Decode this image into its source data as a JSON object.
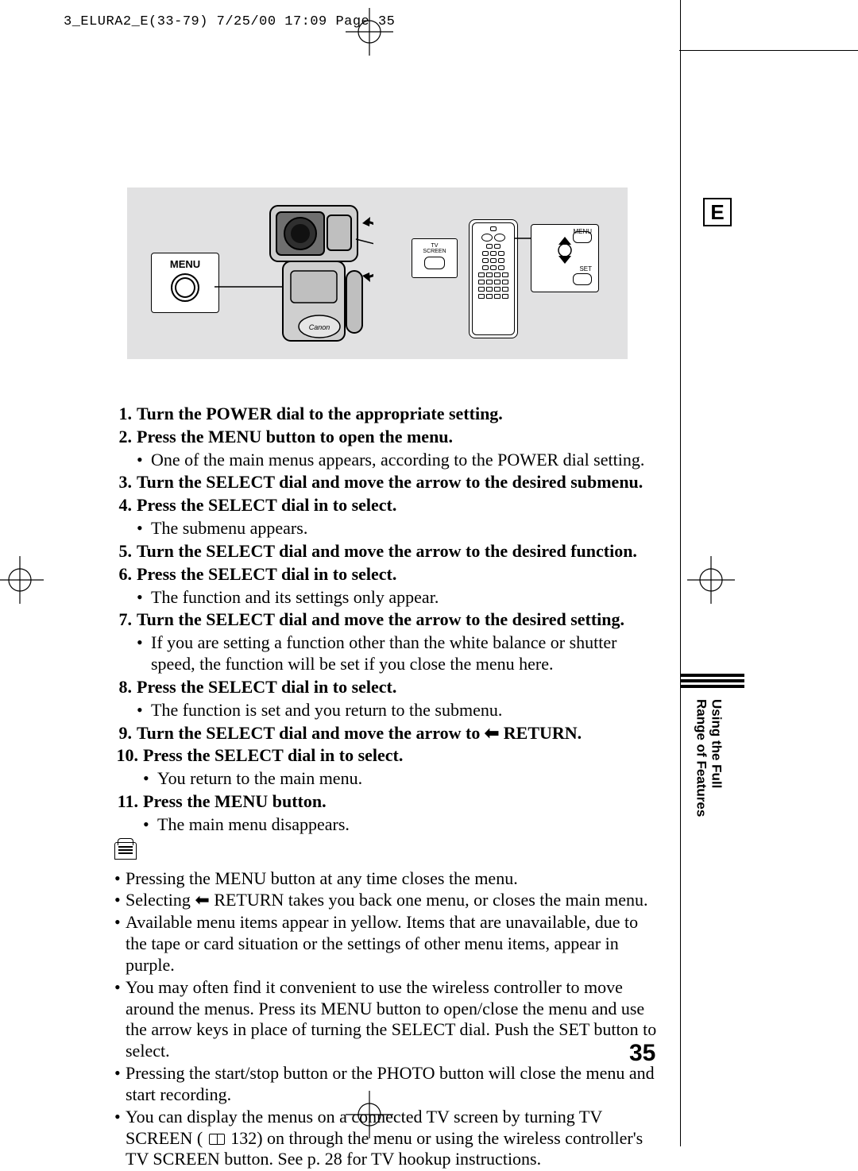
{
  "header": "3_ELURA2_E(33-79)  7/25/00 17:09  Page 35",
  "langBox": "E",
  "sectionTab": "Using the Full\nRange of Features",
  "pageNumber": "35",
  "figure": {
    "menuLabel": "MENU",
    "tvLabel": "TV\nSCREEN",
    "detail": {
      "menu": "MENU",
      "set": "SET"
    }
  },
  "steps": [
    {
      "n": "1.",
      "text": "Turn the POWER dial to the appropriate setting.",
      "subs": []
    },
    {
      "n": "2.",
      "text": "Press the MENU button to open the menu.",
      "subs": [
        "One of the main menus appears, according to the POWER dial setting."
      ]
    },
    {
      "n": "3.",
      "text": "Turn the SELECT dial and move the arrow to the desired submenu.",
      "subs": []
    },
    {
      "n": "4.",
      "text": "Press the SELECT dial in to select.",
      "subs": [
        "The submenu appears."
      ]
    },
    {
      "n": "5.",
      "text": "Turn the SELECT dial and move the arrow to the desired function.",
      "subs": []
    },
    {
      "n": "6.",
      "text": "Press the SELECT dial in to select.",
      "subs": [
        "The function and its settings only appear."
      ]
    },
    {
      "n": "7.",
      "text": "Turn the SELECT dial and move the arrow to the desired setting.",
      "subs": [
        "If you are setting a function other than the white balance or shutter speed, the function will be set if you close the menu here."
      ]
    },
    {
      "n": "8.",
      "text": "Press the SELECT dial in to select.",
      "subs": [
        "The function is set and you return to the submenu."
      ]
    },
    {
      "n": "9.",
      "text": "Turn the SELECT dial and move the arrow to ⬅ RETURN.",
      "subs": []
    },
    {
      "n": "10.",
      "text": "Press the SELECT dial in to select.",
      "subs": [
        "You return to the main menu."
      ]
    },
    {
      "n": "11.",
      "text": "Press the MENU button.",
      "subs": [
        "The main menu disappears."
      ]
    }
  ],
  "notes": [
    "Pressing the MENU button at any time closes the menu.",
    "Selecting ⬅ RETURN takes you back one menu, or closes the main menu.",
    "Available menu items appear in yellow. Items that are unavailable, due to the tape or card situation or the settings of other menu items, appear in purple.",
    "You may often find it convenient to use the wireless controller to move around the menus. Press its MENU button to open/close the menu and use the arrow keys in place of turning the SELECT dial. Push the SET button to select.",
    "Pressing the start/stop button or the PHOTO button will close the menu and start recording.",
    "You can display the menus on a connected TV screen by turning TV SCREEN ( 📖 132) on through the menu or using the wireless controller's TV SCREEN button. See p. 28 for TV hookup instructions."
  ]
}
